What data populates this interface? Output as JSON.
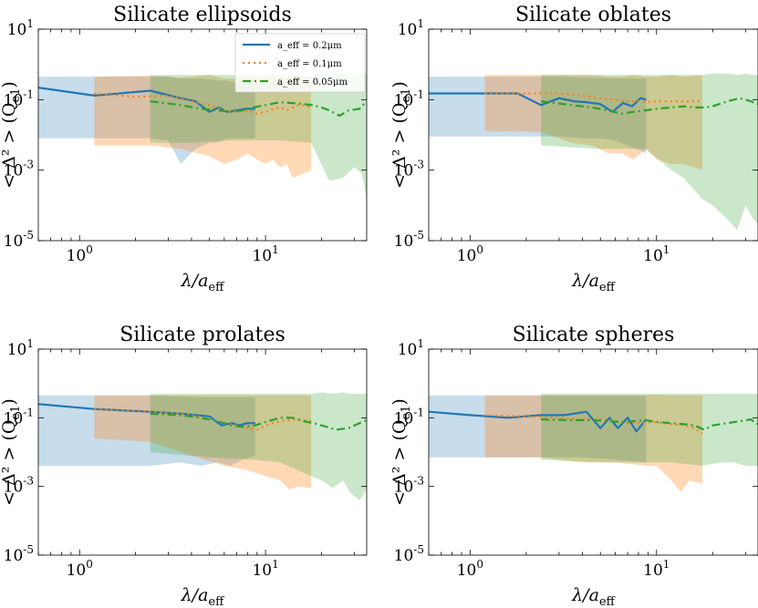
{
  "figure": {
    "colors": {
      "s02": "#1f77b4",
      "s01": "#ff7f0e",
      "s005": "#2ca02c"
    }
  },
  "legend": [
    {
      "key": "s02",
      "label": "a_eff = 0.2μm",
      "style": "solid"
    },
    {
      "key": "s01",
      "label": "a_eff = 0.1μm",
      "style": "dotted"
    },
    {
      "key": "s005",
      "label": "a_eff = 0.05μm",
      "style": "dashdot"
    }
  ],
  "chart_data": [
    {
      "type": "line",
      "title": "Silicate ellipsoids",
      "xlabel": "λ/a_eff",
      "ylabel": "< Δ² > (Q_e1)",
      "xscale": "log",
      "yscale": "log",
      "xlim": [
        0.6,
        35
      ],
      "ylim": [
        1e-05,
        10
      ],
      "xticks": [
        {
          "v": 1,
          "label": "10^0"
        },
        {
          "v": 10,
          "label": "10^1"
        }
      ],
      "yticks": [
        {
          "v": 1e-05,
          "label": "10^-5"
        },
        {
          "v": 0.001,
          "label": "10^-3"
        },
        {
          "v": 0.1,
          "label": "10^-1"
        },
        {
          "v": 10,
          "label": "10^1"
        }
      ],
      "has_legend": true,
      "series": [
        {
          "key": "s02",
          "x": [
            0.6,
            1.2,
            2.4,
            3.5,
            4.2,
            5.0,
            5.6,
            6.2,
            7.0,
            7.8,
            8.8
          ],
          "y": [
            0.22,
            0.13,
            0.18,
            0.11,
            0.09,
            0.045,
            0.06,
            0.045,
            0.05,
            0.055,
            0.055
          ],
          "band_x": [
            0.6,
            2.4,
            3.0,
            3.5,
            4.2,
            5.0,
            5.6,
            6.2,
            7.0,
            7.8,
            8.8
          ],
          "band_hi": [
            0.45,
            0.45,
            0.45,
            0.4,
            0.4,
            0.38,
            0.35,
            0.35,
            0.3,
            0.3,
            0.3
          ],
          "band_lo": [
            0.008,
            0.008,
            0.007,
            0.0015,
            0.004,
            0.006,
            0.006,
            0.008,
            0.008,
            0.008,
            0.008
          ]
        },
        {
          "key": "s01",
          "x": [
            1.2,
            2.0,
            3.0,
            4.0,
            5.0,
            6.0,
            7.0,
            8.0,
            9.0,
            10.0,
            11.0,
            12.0,
            13.0,
            14.0,
            15.0,
            16.0,
            17.6
          ],
          "y": [
            0.15,
            0.12,
            0.13,
            0.09,
            0.07,
            0.05,
            0.045,
            0.05,
            0.04,
            0.045,
            0.055,
            0.06,
            0.05,
            0.06,
            0.07,
            0.07,
            0.06
          ],
          "band_x": [
            1.2,
            2.4,
            3.5,
            5.0,
            6.0,
            7.0,
            8.0,
            9.0,
            10.0,
            11.0,
            12.0,
            13.0,
            14.0,
            16.0,
            17.6
          ],
          "band_hi": [
            0.45,
            0.48,
            0.42,
            0.5,
            0.4,
            0.4,
            0.45,
            0.4,
            0.45,
            0.5,
            0.45,
            0.42,
            0.5,
            0.45,
            0.45
          ],
          "band_lo": [
            0.005,
            0.005,
            0.004,
            0.0025,
            0.0015,
            0.002,
            0.003,
            0.002,
            0.0015,
            0.002,
            0.0012,
            0.0015,
            0.0006,
            0.0008,
            0.001
          ]
        },
        {
          "key": "s005",
          "x": [
            2.4,
            3.5,
            4.5,
            5.5,
            6.5,
            7.5,
            8.5,
            10.0,
            12.0,
            14.0,
            16.0,
            18.0,
            20.0,
            22.0,
            25.0,
            28.0,
            32.0,
            35.0
          ],
          "y": [
            0.09,
            0.07,
            0.055,
            0.05,
            0.045,
            0.05,
            0.06,
            0.07,
            0.085,
            0.08,
            0.075,
            0.07,
            0.06,
            0.05,
            0.035,
            0.05,
            0.055,
            0.09
          ],
          "band_x": [
            2.4,
            4.0,
            6.0,
            8.8,
            12.0,
            17.6,
            22.0,
            26.0,
            30.0,
            33.0,
            35.0
          ],
          "band_hi": [
            0.5,
            0.5,
            0.5,
            0.5,
            0.5,
            0.5,
            0.55,
            0.55,
            0.5,
            0.55,
            0.55
          ],
          "band_lo": [
            0.006,
            0.006,
            0.007,
            0.007,
            0.007,
            0.006,
            0.0005,
            0.0006,
            0.0012,
            0.0008,
            0.00015
          ]
        }
      ]
    },
    {
      "type": "line",
      "title": "Silicate oblates",
      "xlabel": "λ/a_eff",
      "ylabel": "< Δ² > (Q_e1)",
      "xscale": "log",
      "yscale": "log",
      "xlim": [
        0.6,
        35
      ],
      "ylim": [
        1e-05,
        10
      ],
      "xticks": [
        {
          "v": 1,
          "label": "10^0"
        },
        {
          "v": 10,
          "label": "10^1"
        }
      ],
      "yticks": [
        {
          "v": 1e-05,
          "label": "10^-5"
        },
        {
          "v": 0.001,
          "label": "10^-3"
        },
        {
          "v": 0.1,
          "label": "10^-1"
        },
        {
          "v": 10,
          "label": "10^1"
        }
      ],
      "has_legend": false,
      "series": [
        {
          "key": "s02",
          "x": [
            0.6,
            1.0,
            1.8,
            2.4,
            3.0,
            3.6,
            4.2,
            5.0,
            5.8,
            6.6,
            7.4,
            8.2,
            8.8
          ],
          "y": [
            0.15,
            0.15,
            0.15,
            0.07,
            0.11,
            0.09,
            0.085,
            0.075,
            0.045,
            0.08,
            0.065,
            0.11,
            0.1
          ],
          "band_x": [
            0.6,
            2.0,
            3.0,
            4.0,
            5.0,
            6.0,
            7.0,
            8.8
          ],
          "band_hi": [
            0.45,
            0.45,
            0.45,
            0.42,
            0.42,
            0.4,
            0.4,
            0.4
          ],
          "band_lo": [
            0.009,
            0.009,
            0.009,
            0.008,
            0.008,
            0.007,
            0.005,
            0.003
          ]
        },
        {
          "key": "s01",
          "x": [
            1.2,
            2.0,
            3.0,
            4.0,
            5.0,
            6.0,
            7.0,
            8.0,
            9.0,
            10.0,
            12.0,
            14.0,
            17.6
          ],
          "y": [
            0.15,
            0.15,
            0.15,
            0.13,
            0.11,
            0.1,
            0.09,
            0.09,
            0.085,
            0.09,
            0.09,
            0.09,
            0.09
          ],
          "band_x": [
            1.2,
            2.4,
            3.5,
            4.5,
            5.5,
            6.5,
            7.5,
            8.8,
            10.0,
            12.0,
            14.0,
            17.6
          ],
          "band_hi": [
            0.5,
            0.5,
            0.5,
            0.5,
            0.45,
            0.45,
            0.5,
            0.45,
            0.45,
            0.5,
            0.45,
            0.5
          ],
          "band_lo": [
            0.013,
            0.012,
            0.006,
            0.005,
            0.003,
            0.003,
            0.002,
            0.004,
            0.002,
            0.0015,
            0.0015,
            0.001
          ]
        },
        {
          "key": "s005",
          "x": [
            2.4,
            3.5,
            4.5,
            5.5,
            6.5,
            7.5,
            8.8,
            10.0,
            12.0,
            14.0,
            16.0,
            18.0,
            20.0,
            24.0,
            28.0,
            32.0,
            35.0
          ],
          "y": [
            0.09,
            0.07,
            0.06,
            0.05,
            0.04,
            0.045,
            0.05,
            0.055,
            0.06,
            0.065,
            0.06,
            0.06,
            0.065,
            0.09,
            0.11,
            0.09,
            0.075
          ],
          "band_x": [
            2.4,
            5.0,
            8.8,
            12.0,
            14.0,
            17.6,
            20.0,
            24.0,
            27.0,
            30.0,
            33.0,
            35.0
          ],
          "band_hi": [
            0.5,
            0.5,
            0.5,
            0.5,
            0.5,
            0.5,
            0.55,
            0.55,
            0.5,
            0.55,
            0.5,
            0.5
          ],
          "band_lo": [
            0.005,
            0.004,
            0.004,
            0.001,
            0.0006,
            0.00015,
            0.0001,
            4e-05,
            2e-05,
            0.0001,
            4e-05,
            3e-05
          ]
        }
      ]
    },
    {
      "type": "line",
      "title": "Silicate prolates",
      "xlabel": "λ/a_eff",
      "ylabel": "< Δ² > (Q_e1)",
      "xscale": "log",
      "yscale": "log",
      "xlim": [
        0.6,
        35
      ],
      "ylim": [
        1e-05,
        10
      ],
      "xticks": [
        {
          "v": 1,
          "label": "10^0"
        },
        {
          "v": 10,
          "label": "10^1"
        }
      ],
      "yticks": [
        {
          "v": 1e-05,
          "label": "10^-5"
        },
        {
          "v": 0.001,
          "label": "10^-3"
        },
        {
          "v": 0.1,
          "label": "10^-1"
        },
        {
          "v": 10,
          "label": "10^1"
        }
      ],
      "has_legend": false,
      "series": [
        {
          "key": "s02",
          "x": [
            0.6,
            1.2,
            2.4,
            3.6,
            5.0,
            5.8,
            6.6,
            7.2,
            8.0,
            8.8
          ],
          "y": [
            0.25,
            0.18,
            0.15,
            0.13,
            0.11,
            0.06,
            0.07,
            0.06,
            0.07,
            0.07
          ],
          "band_x": [
            0.6,
            2.4,
            3.5,
            4.5,
            5.5,
            6.5,
            7.5,
            8.8
          ],
          "band_hi": [
            0.45,
            0.45,
            0.42,
            0.4,
            0.4,
            0.4,
            0.4,
            0.4
          ],
          "band_lo": [
            0.004,
            0.004,
            0.005,
            0.004,
            0.005,
            0.004,
            0.006,
            0.008
          ]
        },
        {
          "key": "s01",
          "x": [
            1.2,
            2.0,
            3.0,
            4.0,
            5.0,
            6.0,
            7.0,
            8.0,
            9.0,
            10.0,
            12.0,
            14.0,
            17.6
          ],
          "y": [
            0.18,
            0.16,
            0.14,
            0.12,
            0.09,
            0.07,
            0.06,
            0.05,
            0.045,
            0.06,
            0.08,
            0.09,
            0.08
          ],
          "band_x": [
            1.2,
            2.4,
            4.0,
            6.0,
            8.0,
            10.0,
            12.0,
            13.5,
            15.0,
            17.6
          ],
          "band_hi": [
            0.45,
            0.45,
            0.45,
            0.45,
            0.45,
            0.45,
            0.45,
            0.45,
            0.45,
            0.45
          ],
          "band_lo": [
            0.025,
            0.02,
            0.008,
            0.004,
            0.003,
            0.002,
            0.0015,
            0.0008,
            0.001,
            0.0009
          ]
        },
        {
          "key": "s005",
          "x": [
            2.4,
            3.5,
            4.5,
            5.5,
            6.5,
            7.5,
            8.8,
            10.0,
            12.0,
            14.0,
            16.0,
            18.0,
            20.0,
            24.0,
            28.0,
            32.0,
            35.0
          ],
          "y": [
            0.13,
            0.12,
            0.1,
            0.08,
            0.06,
            0.055,
            0.06,
            0.075,
            0.1,
            0.1,
            0.08,
            0.07,
            0.06,
            0.045,
            0.05,
            0.07,
            0.085
          ],
          "band_x": [
            2.4,
            5.0,
            8.8,
            12.0,
            17.6,
            20.0,
            23.0,
            26.0,
            29.0,
            32.0,
            35.0
          ],
          "band_hi": [
            0.5,
            0.5,
            0.5,
            0.5,
            0.5,
            0.55,
            0.5,
            0.55,
            0.5,
            0.5,
            0.5
          ],
          "band_lo": [
            0.01,
            0.007,
            0.006,
            0.005,
            0.002,
            0.0015,
            0.0009,
            0.0015,
            0.0006,
            0.0004,
            0.0008
          ]
        }
      ]
    },
    {
      "type": "line",
      "title": "Silicate spheres",
      "xlabel": "λ/a_eff",
      "ylabel": "< Δ² > (Q_e1)",
      "xscale": "log",
      "yscale": "log",
      "xlim": [
        0.6,
        35
      ],
      "ylim": [
        1e-05,
        10
      ],
      "xticks": [
        {
          "v": 1,
          "label": "10^0"
        },
        {
          "v": 10,
          "label": "10^1"
        }
      ],
      "yticks": [
        {
          "v": 1e-05,
          "label": "10^-5"
        },
        {
          "v": 0.001,
          "label": "10^-3"
        },
        {
          "v": 0.1,
          "label": "10^-1"
        },
        {
          "v": 10,
          "label": "10^1"
        }
      ],
      "has_legend": false,
      "series": [
        {
          "key": "s02",
          "x": [
            0.6,
            1.0,
            1.6,
            2.4,
            3.2,
            4.2,
            5.0,
            5.6,
            6.2,
            7.0,
            7.8,
            8.8
          ],
          "y": [
            0.15,
            0.12,
            0.1,
            0.12,
            0.12,
            0.15,
            0.05,
            0.1,
            0.05,
            0.1,
            0.04,
            0.09
          ],
          "band_x": [
            0.6,
            2.4,
            4.0,
            6.0,
            8.8
          ],
          "band_hi": [
            0.45,
            0.45,
            0.45,
            0.45,
            0.45
          ],
          "band_lo": [
            0.007,
            0.007,
            0.007,
            0.006,
            0.005
          ]
        },
        {
          "key": "s01",
          "x": [
            1.2,
            2.0,
            3.0,
            4.0,
            5.0,
            6.0,
            7.0,
            8.0,
            10.0,
            12.0,
            14.0,
            16.0,
            17.6
          ],
          "y": [
            0.12,
            0.11,
            0.1,
            0.09,
            0.09,
            0.08,
            0.07,
            0.07,
            0.075,
            0.065,
            0.06,
            0.05,
            0.035
          ],
          "band_x": [
            1.2,
            2.4,
            4.0,
            6.0,
            8.8,
            10.0,
            12.0,
            13.5,
            15.0,
            17.6
          ],
          "band_hi": [
            0.45,
            0.45,
            0.45,
            0.45,
            0.45,
            0.48,
            0.45,
            0.45,
            0.45,
            0.45
          ],
          "band_lo": [
            0.007,
            0.007,
            0.005,
            0.005,
            0.004,
            0.004,
            0.0015,
            0.0007,
            0.0015,
            0.0012
          ]
        },
        {
          "key": "s005",
          "x": [
            2.4,
            3.5,
            4.5,
            5.5,
            6.5,
            7.5,
            8.8,
            10.0,
            12.0,
            14.0,
            16.0,
            18.0,
            20.0,
            24.0,
            28.0,
            32.0,
            35.0
          ],
          "y": [
            0.09,
            0.085,
            0.085,
            0.08,
            0.075,
            0.08,
            0.085,
            0.075,
            0.07,
            0.065,
            0.06,
            0.045,
            0.06,
            0.07,
            0.08,
            0.09,
            0.065
          ],
          "band_x": [
            2.4,
            5.0,
            8.8,
            12.0,
            17.6,
            22.0,
            26.0,
            30.0,
            35.0
          ],
          "band_hi": [
            0.5,
            0.5,
            0.5,
            0.5,
            0.5,
            0.5,
            0.5,
            0.5,
            0.5
          ],
          "band_lo": [
            0.006,
            0.005,
            0.005,
            0.005,
            0.004,
            0.005,
            0.005,
            0.004,
            0.004
          ]
        }
      ]
    }
  ]
}
